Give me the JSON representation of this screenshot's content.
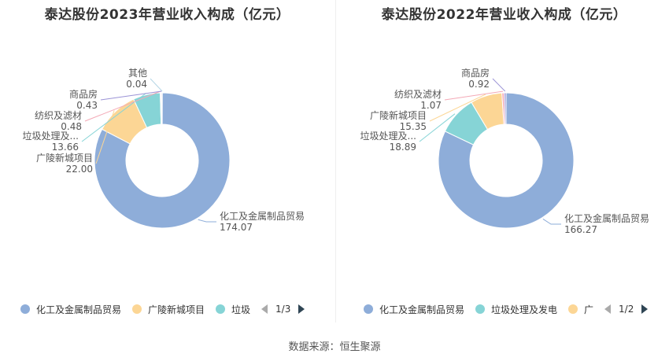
{
  "colors": {
    "chem": "#8eadd9",
    "guangling": "#fcd695",
    "garbage": "#86d4d6",
    "textile": "#f4a9b6",
    "commercial": "#9b93d6",
    "other": "#b6d6e6"
  },
  "legend_icon": "circle-dot",
  "chart_data": [
    {
      "type": "pie",
      "title": "泰达股份2023年营业收入构成（亿元）",
      "slices": [
        {
          "label": "化工及金属制品贸易",
          "value": 174.07,
          "display": "174.07",
          "color": "#8eadd9"
        },
        {
          "label": "广陵新城项目",
          "value": 22.0,
          "display": "22.00",
          "color": "#fcd695"
        },
        {
          "label": "垃圾处理及...",
          "value": 13.66,
          "display": "13.66",
          "color": "#86d4d6"
        },
        {
          "label": "纺织及滤材",
          "value": 0.48,
          "display": "0.48",
          "color": "#f4a9b6"
        },
        {
          "label": "商品房",
          "value": 0.43,
          "display": "0.43",
          "color": "#9b93d6"
        },
        {
          "label": "其他",
          "value": 0.04,
          "display": "0.04",
          "color": "#b6d6e6"
        }
      ],
      "legend": {
        "items": [
          {
            "label": "化工及金属制品贸易",
            "color": "#8eadd9"
          },
          {
            "label": "广陵新城项目",
            "color": "#fcd695"
          },
          {
            "label": "垃圾",
            "color": "#86d4d6"
          }
        ],
        "page": "1/3"
      }
    },
    {
      "type": "pie",
      "title": "泰达股份2022年营业收入构成（亿元）",
      "slices": [
        {
          "label": "化工及金属制品贸易",
          "value": 166.27,
          "display": "166.27",
          "color": "#8eadd9"
        },
        {
          "label": "垃圾处理及...",
          "value": 18.89,
          "display": "18.89",
          "color": "#86d4d6"
        },
        {
          "label": "广陵新城项目",
          "value": 15.35,
          "display": "15.35",
          "color": "#fcd695"
        },
        {
          "label": "纺织及滤材",
          "value": 1.07,
          "display": "1.07",
          "color": "#f4a9b6"
        },
        {
          "label": "商品房",
          "value": 0.92,
          "display": "0.92",
          "color": "#9b93d6"
        }
      ],
      "legend": {
        "items": [
          {
            "label": "化工及金属制品贸易",
            "color": "#8eadd9"
          },
          {
            "label": "垃圾处理及发电",
            "color": "#86d4d6"
          },
          {
            "label": "广",
            "color": "#fcd695"
          }
        ],
        "page": "1/2"
      }
    }
  ],
  "source": "数据来源：恒生聚源"
}
